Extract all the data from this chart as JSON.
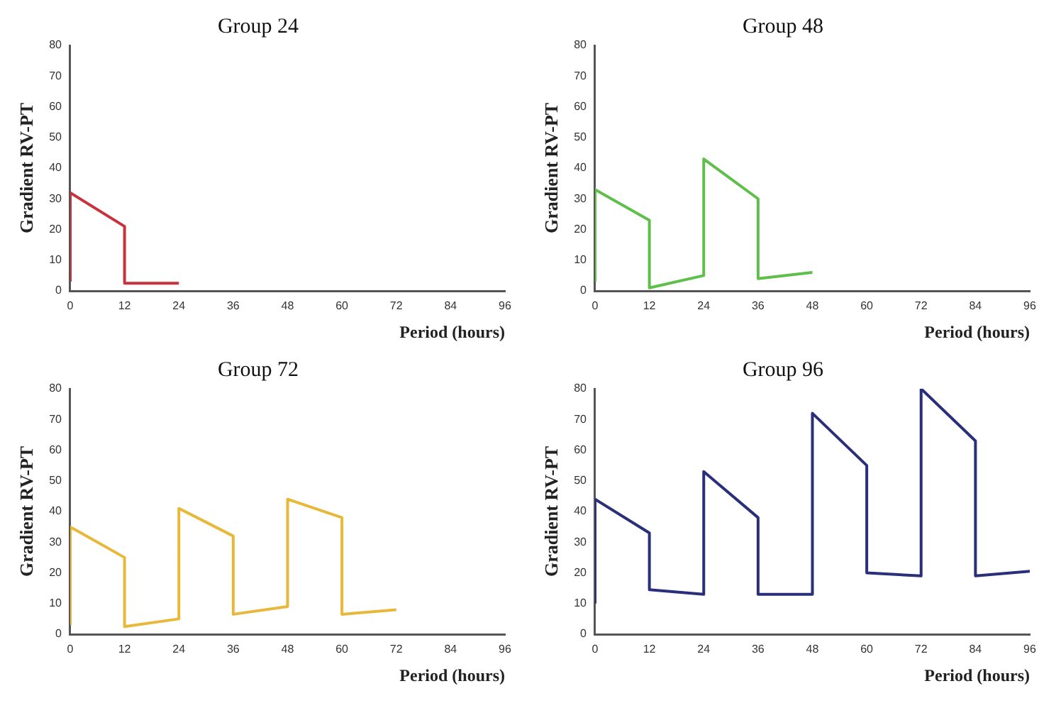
{
  "chart_data": [
    {
      "type": "line",
      "title": "Group 24",
      "xlabel": "Period (hours)",
      "ylabel": "Gradient RV-PT",
      "xlim": [
        0,
        96
      ],
      "xticks": [
        0,
        12,
        24,
        36,
        48,
        60,
        72,
        84,
        96
      ],
      "ylim": [
        0,
        80
      ],
      "yticks": [
        0,
        10,
        20,
        30,
        40,
        50,
        60,
        70,
        80
      ],
      "grid": false,
      "legend": false,
      "series": [
        {
          "color": "#c8323c",
          "x": [
            0,
            0,
            12,
            12,
            24
          ],
          "values": [
            3,
            32,
            21,
            2.5,
            2.5
          ]
        }
      ]
    },
    {
      "type": "line",
      "title": "Group 48",
      "xlabel": "Period (hours)",
      "ylabel": "Gradient RV-PT",
      "xlim": [
        0,
        96
      ],
      "xticks": [
        0,
        12,
        24,
        36,
        48,
        60,
        72,
        84,
        96
      ],
      "ylim": [
        0,
        80
      ],
      "yticks": [
        0,
        10,
        20,
        30,
        40,
        50,
        60,
        70,
        80
      ],
      "grid": false,
      "legend": false,
      "series": [
        {
          "color": "#5fbf4a",
          "x": [
            0,
            0,
            12,
            12,
            24,
            24,
            36,
            36,
            48
          ],
          "values": [
            3,
            33,
            23,
            1,
            5,
            43,
            30,
            4,
            6
          ]
        }
      ]
    },
    {
      "type": "line",
      "title": "Group 72",
      "xlabel": "Period (hours)",
      "ylabel": "Gradient RV-PT",
      "xlim": [
        0,
        96
      ],
      "xticks": [
        0,
        12,
        24,
        36,
        48,
        60,
        72,
        84,
        96
      ],
      "ylim": [
        0,
        80
      ],
      "yticks": [
        0,
        10,
        20,
        30,
        40,
        50,
        60,
        70,
        80
      ],
      "grid": false,
      "legend": false,
      "series": [
        {
          "color": "#e8b83a",
          "x": [
            0,
            0,
            12,
            12,
            24,
            24,
            36,
            36,
            48,
            48,
            60,
            60,
            72
          ],
          "values": [
            3,
            35,
            25,
            2.5,
            5,
            41,
            32,
            6.5,
            9,
            44,
            38,
            6.5,
            8
          ]
        }
      ]
    },
    {
      "type": "line",
      "title": "Group 96",
      "xlabel": "Period (hours)",
      "ylabel": "Gradient RV-PT",
      "xlim": [
        0,
        96
      ],
      "xticks": [
        0,
        12,
        24,
        36,
        48,
        60,
        72,
        84,
        96
      ],
      "ylim": [
        0,
        80
      ],
      "yticks": [
        0,
        10,
        20,
        30,
        40,
        50,
        60,
        70,
        80
      ],
      "grid": false,
      "legend": false,
      "series": [
        {
          "color": "#2a2f7a",
          "x": [
            0,
            0,
            12,
            12,
            24,
            24,
            36,
            36,
            48,
            48,
            60,
            60,
            72,
            72,
            84,
            84,
            96
          ],
          "values": [
            10,
            44,
            33,
            14.5,
            13,
            53,
            38,
            13,
            13,
            72,
            55,
            20,
            19,
            80,
            63,
            19,
            20.5
          ]
        }
      ]
    }
  ]
}
